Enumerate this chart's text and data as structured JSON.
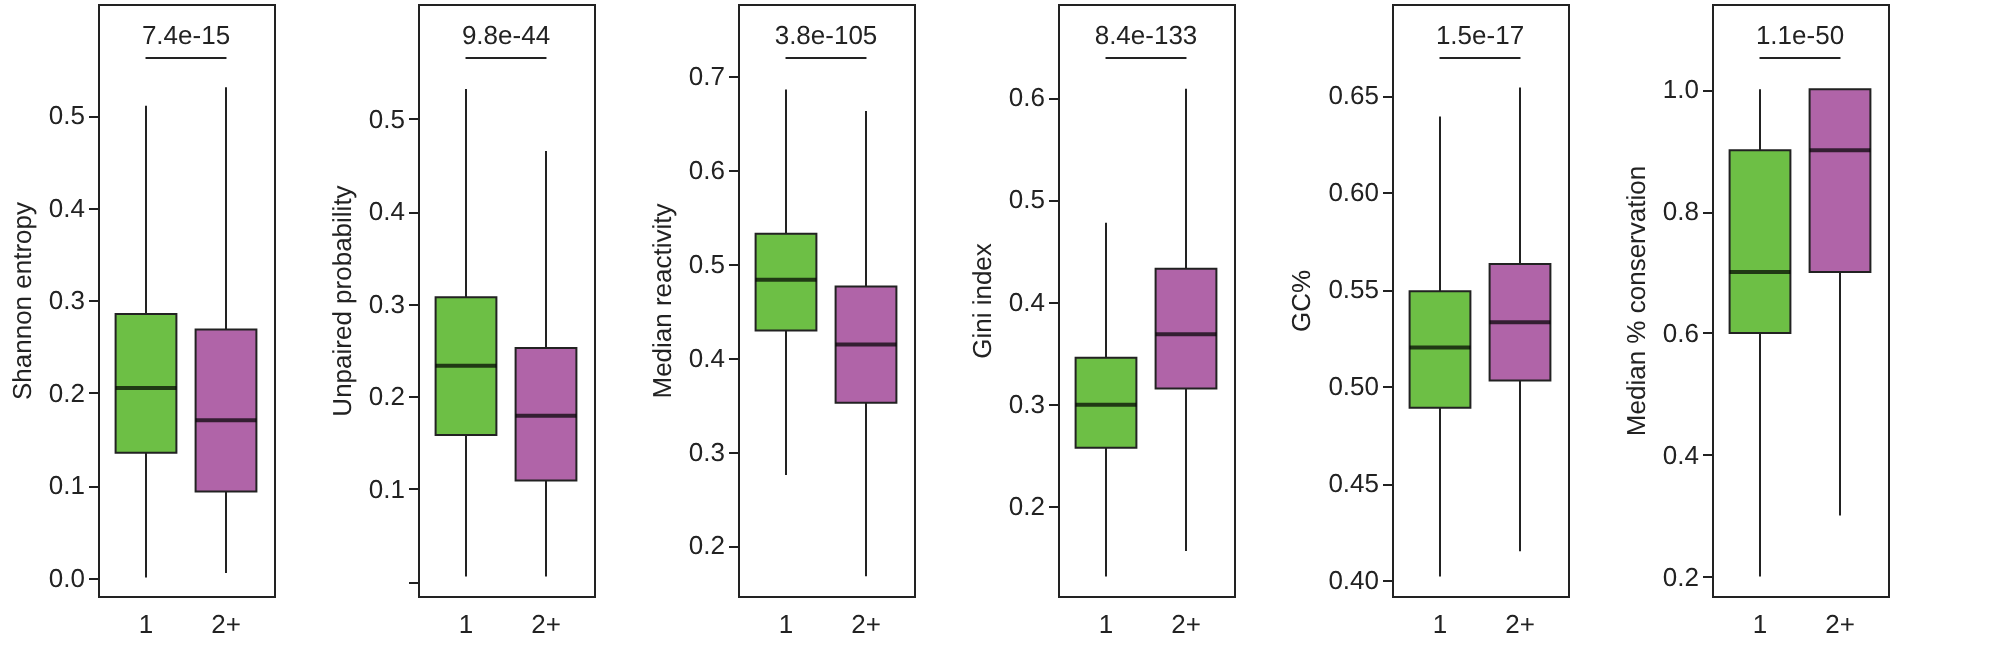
{
  "chart_data": [
    {
      "type": "box",
      "ylabel": "Shannon entropy",
      "categories": [
        "1",
        "2+"
      ],
      "colors": [
        "#6dbf45",
        "#b064a8"
      ],
      "ylim": [
        -0.02,
        0.62
      ],
      "yticks": [
        {
          "value": 0,
          "label": "0.0"
        },
        0.1,
        0.2,
        0.3,
        0.4,
        0.5
      ],
      "grid": false,
      "annotations": [
        "7.4e-15"
      ],
      "boxes": [
        {
          "low": 0.0,
          "q1": 0.135,
          "median": 0.205,
          "q3": 0.285,
          "high": 0.51
        },
        {
          "low": 0.005,
          "q1": 0.093,
          "median": 0.17,
          "q3": 0.268,
          "high": 0.53
        }
      ]
    },
    {
      "type": "box",
      "ylabel": "Unpaired probability",
      "categories": [
        "1",
        "2+"
      ],
      "colors": [
        "#6dbf45",
        "#b064a8"
      ],
      "ylim": [
        -0.016,
        0.624
      ],
      "yticks": [
        {
          "value": 0,
          "label": null
        },
        0.1,
        0.2,
        0.3,
        0.4,
        0.5
      ],
      "grid": false,
      "annotations": [
        "9.8e-44"
      ],
      "boxes": [
        {
          "low": 0.005,
          "q1": 0.158,
          "median": 0.233,
          "q3": 0.307,
          "high": 0.532
        },
        {
          "low": 0.005,
          "q1": 0.109,
          "median": 0.179,
          "q3": 0.252,
          "high": 0.465
        }
      ]
    },
    {
      "type": "box",
      "ylabel": "Median reactivity",
      "categories": [
        "1",
        "2+"
      ],
      "colors": [
        "#6dbf45",
        "#b064a8"
      ],
      "ylim": [
        0.146,
        0.777
      ],
      "yticks": [
        0.2,
        0.3,
        0.4,
        0.5,
        0.6,
        0.7
      ],
      "grid": false,
      "annotations": [
        "3.8e-105"
      ],
      "boxes": [
        {
          "low": 0.275,
          "q1": 0.429,
          "median": 0.483,
          "q3": 0.532,
          "high": 0.686
        },
        {
          "low": 0.167,
          "q1": 0.352,
          "median": 0.414,
          "q3": 0.476,
          "high": 0.663
        }
      ]
    },
    {
      "type": "box",
      "ylabel": "Gini index",
      "categories": [
        "1",
        "2+"
      ],
      "colors": [
        "#6dbf45",
        "#b064a8"
      ],
      "ylim": [
        0.112,
        0.691
      ],
      "yticks": [
        0.2,
        0.3,
        0.4,
        0.5,
        0.6
      ],
      "grid": false,
      "annotations": [
        "8.4e-133"
      ],
      "boxes": [
        {
          "low": 0.131,
          "q1": 0.257,
          "median": 0.299,
          "q3": 0.345,
          "high": 0.477
        },
        {
          "low": 0.156,
          "q1": 0.315,
          "median": 0.368,
          "q3": 0.432,
          "high": 0.608
        }
      ]
    },
    {
      "type": "box",
      "ylabel": "GC%",
      "categories": [
        "1",
        "2+"
      ],
      "colors": [
        "#6dbf45",
        "#b064a8"
      ],
      "ylim": [
        0.392,
        0.697
      ],
      "yticks": [
        {
          "value": 0.4,
          "label": "0.40"
        },
        0.45,
        {
          "value": 0.5,
          "label": "0.50"
        },
        0.55,
        {
          "value": 0.6,
          "label": "0.60"
        },
        0.65
      ],
      "grid": false,
      "annotations": [
        "1.5e-17"
      ],
      "boxes": [
        {
          "low": 0.402,
          "q1": 0.489,
          "median": 0.52,
          "q3": 0.549,
          "high": 0.639
        },
        {
          "low": 0.415,
          "q1": 0.503,
          "median": 0.533,
          "q3": 0.563,
          "high": 0.654
        }
      ]
    },
    {
      "type": "box",
      "ylabel": "Median % conservation",
      "categories": [
        "1",
        "2+"
      ],
      "colors": [
        "#6dbf45",
        "#b064a8"
      ],
      "ylim": [
        0.168,
        1.14
      ],
      "yticks": [
        0.2,
        0.4,
        0.6,
        0.8,
        {
          "value": 1.0,
          "label": "1.0"
        }
      ],
      "grid": false,
      "annotations": [
        "1.1e-50"
      ],
      "boxes": [
        {
          "low": 0.2,
          "q1": 0.6,
          "median": 0.7,
          "q3": 0.9,
          "high": 1.0
        },
        {
          "low": 0.3,
          "q1": 0.7,
          "median": 0.9,
          "q3": 1.0,
          "high": 1.0
        }
      ]
    }
  ]
}
